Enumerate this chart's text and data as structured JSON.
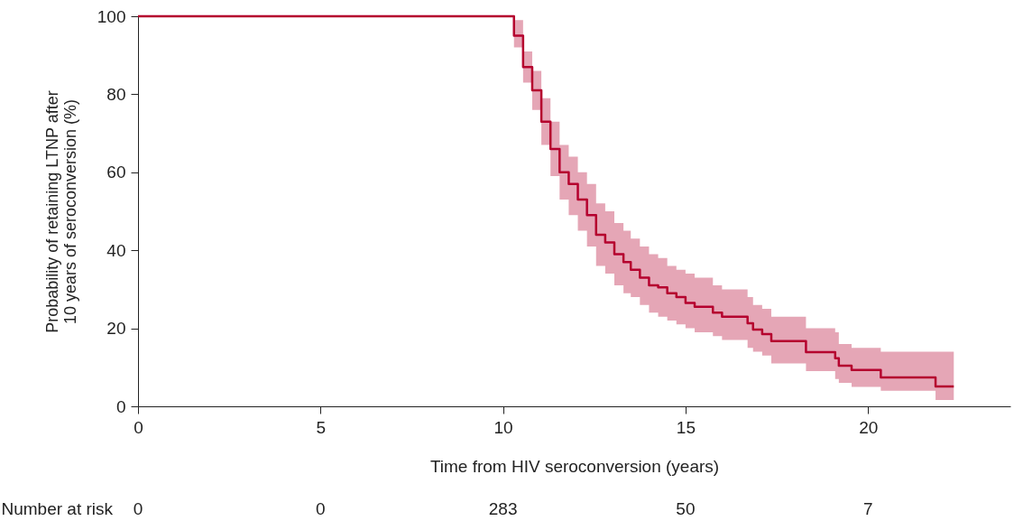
{
  "chart_data": {
    "type": "step",
    "xlabel": "Time from HIV seroconversion (years)",
    "ylabel": "Probability of retaining LTNP after\n10 years of seroconversion (%)",
    "x": [
      0,
      10,
      10.3,
      10.55,
      10.8,
      11.05,
      11.3,
      11.55,
      11.8,
      12.05,
      12.3,
      12.55,
      12.8,
      13.05,
      13.3,
      13.5,
      13.75,
      14.0,
      14.25,
      14.5,
      14.75,
      15.0,
      15.25,
      15.75,
      16.0,
      16.7,
      16.85,
      17.1,
      17.35,
      18.3,
      19.1,
      19.2,
      19.55,
      20.35,
      21.85,
      22.35
    ],
    "series": [
      {
        "color": "#b5002e",
        "values": [
          100,
          100,
          95,
          87,
          81,
          73,
          66,
          60,
          57,
          53,
          49,
          44,
          42,
          39,
          37,
          35,
          33,
          31,
          30.5,
          29,
          28,
          26.5,
          25.5,
          24,
          23,
          21.3,
          19.7,
          18.5,
          16.7,
          13.9,
          12.3,
          10.4,
          9.3,
          7.4,
          5.1,
          5.1
        ],
        "lower": [
          null,
          100,
          92,
          83,
          76,
          67,
          59,
          53,
          49,
          45,
          41,
          36,
          34,
          31,
          29,
          28,
          26,
          24,
          23,
          22,
          21,
          20,
          19,
          18,
          17,
          15,
          14,
          13,
          11,
          9,
          7,
          6,
          5,
          4,
          1.6,
          1.6
        ],
        "upper": [
          null,
          100,
          99,
          91,
          86,
          79,
          73,
          67,
          64,
          60,
          57,
          52,
          50,
          47,
          45,
          43,
          41,
          39,
          38,
          36,
          35,
          34,
          33,
          31,
          30,
          28,
          26,
          25,
          23,
          20,
          19,
          16,
          15,
          14,
          14,
          14
        ]
      }
    ],
    "xlim": [
      0,
      23.9
    ],
    "xticks": [
      0,
      5,
      10,
      15,
      20
    ],
    "ylim": [
      0,
      100
    ],
    "yticks": [
      0,
      20,
      40,
      60,
      80,
      100
    ],
    "grid": false,
    "marker": "none",
    "line_style": "solid",
    "annotations": [
      "Number at risk",
      "0",
      "0",
      "283",
      "50",
      "7"
    ]
  }
}
